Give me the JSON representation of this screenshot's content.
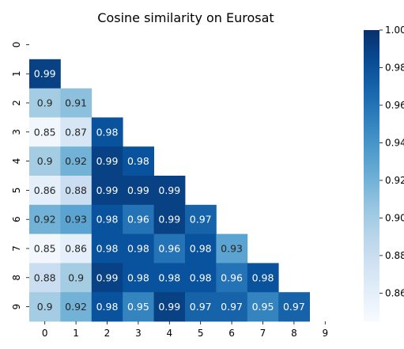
{
  "chart_data": {
    "type": "heatmap",
    "title": "Cosine similarity on Eurosat",
    "xlabel": "",
    "ylabel": "",
    "x_categories": [
      "0",
      "1",
      "2",
      "3",
      "4",
      "5",
      "6",
      "7",
      "8",
      "9"
    ],
    "y_categories": [
      "0",
      "1",
      "2",
      "3",
      "4",
      "5",
      "6",
      "7",
      "8",
      "9"
    ],
    "mask": "upper-triangle-including-diagonal",
    "colormap": "Blues",
    "vmin": 0.845,
    "vmax": 1.0,
    "colorbar_ticks": [
      "1.00",
      "0.98",
      "0.96",
      "0.94",
      "0.92",
      "0.90",
      "0.88",
      "0.86"
    ],
    "values": [
      [],
      [
        0.99
      ],
      [
        0.9,
        0.91
      ],
      [
        0.85,
        0.87,
        0.98
      ],
      [
        0.9,
        0.92,
        0.99,
        0.98
      ],
      [
        0.86,
        0.88,
        0.99,
        0.99,
        0.99
      ],
      [
        0.92,
        0.93,
        0.98,
        0.96,
        0.99,
        0.97
      ],
      [
        0.85,
        0.86,
        0.98,
        0.98,
        0.96,
        0.98,
        0.93
      ],
      [
        0.88,
        0.9,
        0.99,
        0.98,
        0.98,
        0.98,
        0.96,
        0.98
      ],
      [
        0.9,
        0.92,
        0.98,
        0.95,
        0.99,
        0.97,
        0.97,
        0.95,
        0.97
      ]
    ],
    "value_labels": [
      [],
      [
        "0.99"
      ],
      [
        "0.9",
        "0.91"
      ],
      [
        "0.85",
        "0.87",
        "0.98"
      ],
      [
        "0.9",
        "0.92",
        "0.99",
        "0.98"
      ],
      [
        "0.86",
        "0.88",
        "0.99",
        "0.99",
        "0.99"
      ],
      [
        "0.92",
        "0.93",
        "0.98",
        "0.96",
        "0.99",
        "0.97"
      ],
      [
        "0.85",
        "0.86",
        "0.98",
        "0.98",
        "0.96",
        "0.98",
        "0.93"
      ],
      [
        "0.88",
        "0.9",
        "0.99",
        "0.98",
        "0.98",
        "0.98",
        "0.96",
        "0.98"
      ],
      [
        "0.9",
        "0.92",
        "0.98",
        "0.95",
        "0.99",
        "0.97",
        "0.97",
        "0.95",
        "0.97"
      ]
    ]
  }
}
